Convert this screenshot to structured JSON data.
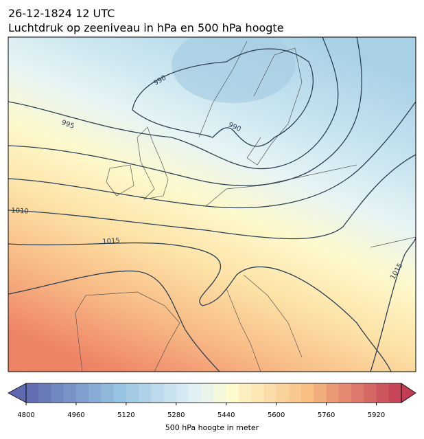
{
  "header": {
    "date": "26-12-1824 12 UTC",
    "title": "Luchtdruk op zeeniveau in hPa en 500 hPa hoogte"
  },
  "isobar_labels": [
    "990",
    "990",
    "995",
    "1010",
    "1015",
    "1015"
  ],
  "colorbar": {
    "label": "500 hPa hoogte in meter",
    "range": [
      4800,
      6000
    ],
    "ticks": [
      4800,
      4960,
      5120,
      5280,
      5440,
      5600,
      5760,
      5920
    ]
  }
}
